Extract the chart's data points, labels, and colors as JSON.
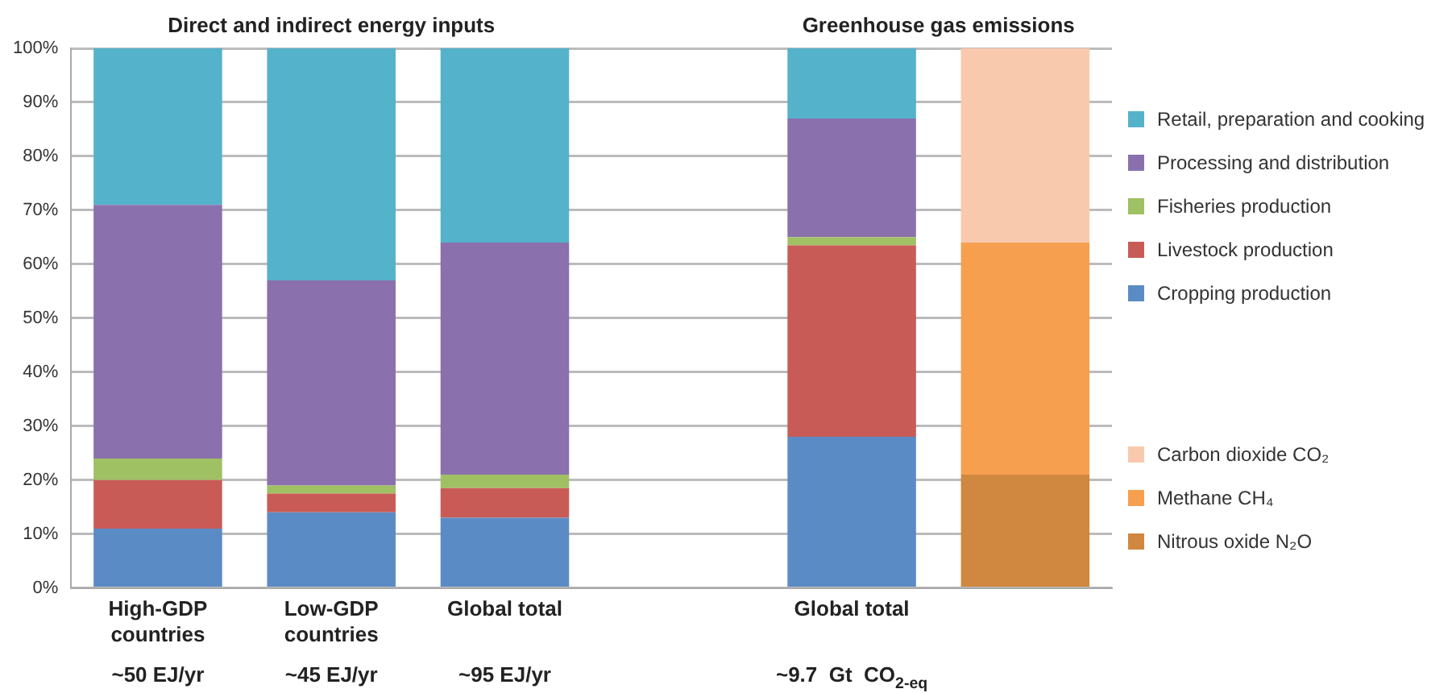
{
  "chart_data": {
    "type": "bar",
    "stacked": true,
    "title": "Direct and indirect energy inputs",
    "subtitle": "Greenhouse gas emissions",
    "categories": [
      "High-GDP countries",
      "Low-GDP countries",
      "Global total",
      null,
      "Global total",
      null
    ],
    "series": [
      {
        "name": "Cropping production",
        "color": "#5b8bc5",
        "values": [
          11,
          14,
          13,
          null,
          28,
          null
        ]
      },
      {
        "name": "Livestock production",
        "color": "#c95b57",
        "values": [
          9,
          3.5,
          5.5,
          null,
          35.5,
          null
        ]
      },
      {
        "name": "Fisheries production",
        "color": "#9fc063",
        "values": [
          4,
          1.5,
          2.5,
          null,
          1.5,
          null
        ]
      },
      {
        "name": "Processing and distribution",
        "color": "#8a70ad",
        "values": [
          47,
          38,
          43,
          null,
          22,
          null
        ]
      },
      {
        "name": "Retail, preparation and cooking",
        "color": "#55b2cb",
        "values": [
          29,
          43,
          36,
          null,
          13,
          null
        ]
      },
      {
        "name": "Nitrous oxide N₂O",
        "color": "#d0873f",
        "values": [
          null,
          null,
          null,
          null,
          null,
          21
        ]
      },
      {
        "name": "Methane CH₄",
        "color": "#f6a04f",
        "values": [
          null,
          null,
          null,
          null,
          null,
          43
        ]
      },
      {
        "name": "Carbon dioxide CO₂",
        "color": "#f9c9ae",
        "values": [
          null,
          null,
          null,
          null,
          null,
          36
        ]
      }
    ],
    "ylim": [
      0,
      100
    ],
    "yticks": [
      {
        "value": 0,
        "label": "0%"
      },
      {
        "value": 10,
        "label": "10%"
      },
      {
        "value": 20,
        "label": "20%"
      },
      {
        "value": 30,
        "label": "30%"
      },
      {
        "value": 40,
        "label": "40%"
      },
      {
        "value": 50,
        "label": "50%"
      },
      {
        "value": 60,
        "label": "60%"
      },
      {
        "value": 70,
        "label": "70%"
      },
      {
        "value": 80,
        "label": "80%"
      },
      {
        "value": 90,
        "label": "90%"
      },
      {
        "value": 100,
        "label": "100%"
      }
    ],
    "grid": "y",
    "legend": "right",
    "annotations": [
      "~50 EJ/yr",
      "~45 EJ/yr",
      "~95 EJ/yr",
      "~9.7  Gt  CO$_{2-eq}$"
    ]
  }
}
